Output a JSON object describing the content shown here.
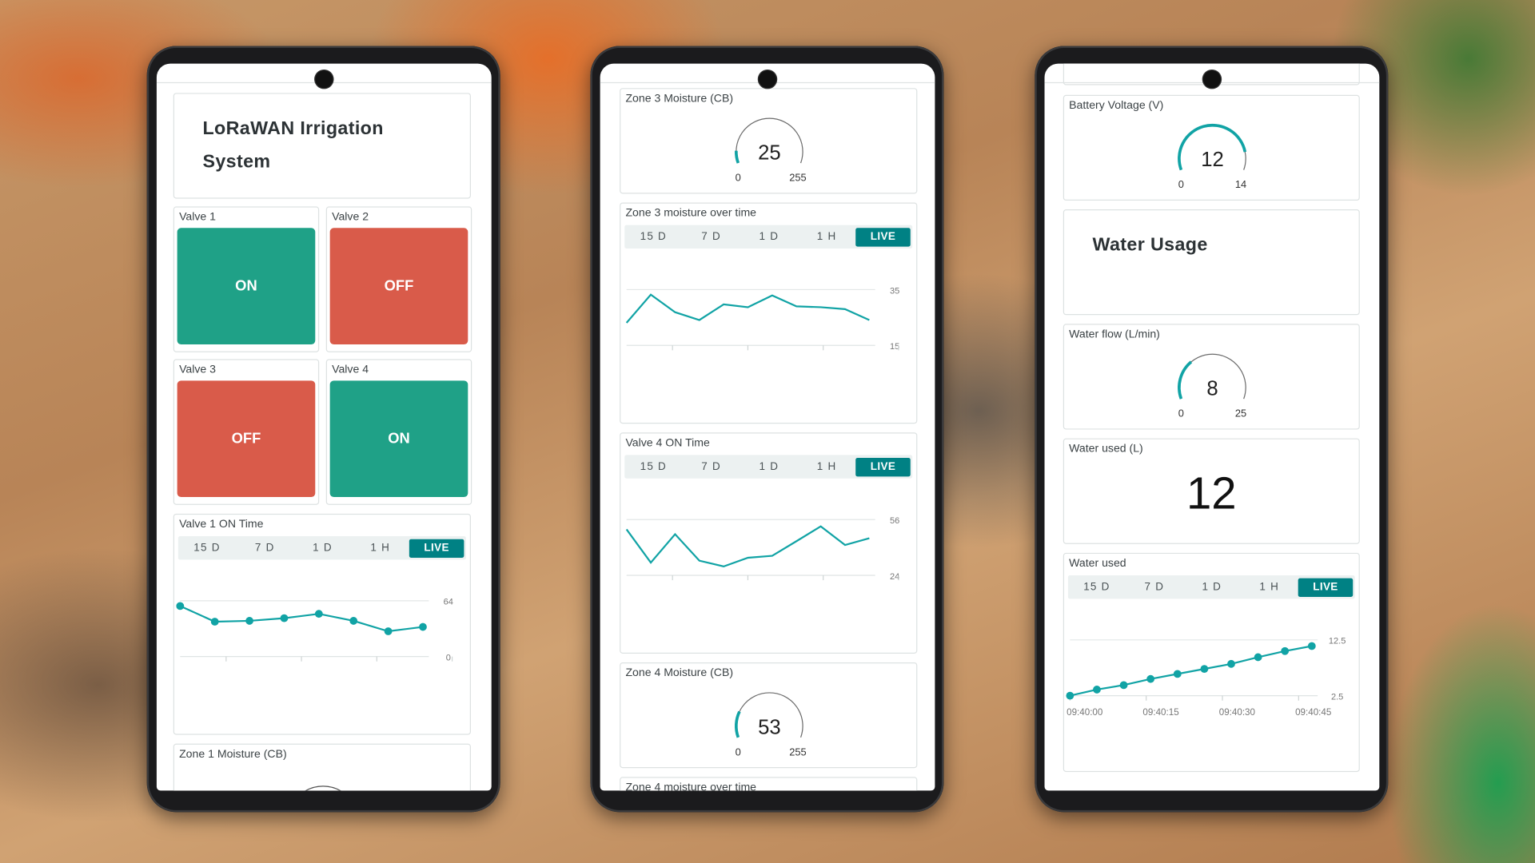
{
  "colors": {
    "on": "#1fa187",
    "off": "#d95b4a",
    "accent": "#008184",
    "line": "#11a3a5"
  },
  "tabs": [
    "15 D",
    "7 D",
    "1 D",
    "1 H",
    "LIVE"
  ],
  "left": {
    "title_line1": "LoRaWAN Irrigation",
    "title_line2": "System",
    "valves": [
      {
        "label": "Valve 1",
        "state": "ON"
      },
      {
        "label": "Valve 2",
        "state": "OFF"
      },
      {
        "label": "Valve 3",
        "state": "OFF"
      },
      {
        "label": "Valve 4",
        "state": "ON"
      }
    ],
    "chart_title": "Valve 1 ON Time",
    "zone1_title": "Zone 1 Moisture (CB)"
  },
  "middle": {
    "zone3_gauge": {
      "title": "Zone 3 Moisture (CB)",
      "value": "25",
      "min": "0",
      "max": "255"
    },
    "zone3_chart_title": "Zone 3 moisture over time",
    "valve4_chart_title": "Valve 4 ON Time",
    "zone4_gauge": {
      "title": "Zone 4 Moisture (CB)",
      "value": "53",
      "min": "0",
      "max": "255"
    },
    "zone4_chart_title": "Zone 4 moisture over time"
  },
  "right": {
    "battery_gauge": {
      "title": "Battery Voltage (V)",
      "value": "12",
      "min": "0",
      "max": "14"
    },
    "section_title": "Water Usage",
    "flow_gauge": {
      "title": "Water flow (L/min)",
      "value": "8",
      "min": "0",
      "max": "25"
    },
    "water_used_title": "Water used (L)",
    "water_used_value": "12",
    "water_chart_title": "Water used"
  },
  "chart_data": [
    {
      "type": "line",
      "title": "Valve 1 ON Time",
      "ylim": [
        0,
        64
      ],
      "ytick_labels": [
        "64",
        "0"
      ],
      "markers": true,
      "values": [
        58,
        40,
        41,
        44,
        49,
        41,
        29,
        34
      ]
    },
    {
      "type": "line",
      "title": "Zone 3 moisture over time",
      "ylim": [
        15,
        35
      ],
      "ytick_labels": [
        "35",
        "15"
      ],
      "markers": false,
      "values": [
        23.1,
        33.2,
        26.9,
        24.1,
        29.7,
        28.7,
        32.9,
        29.0,
        28.7,
        28.0,
        24.1
      ]
    },
    {
      "type": "line",
      "title": "Valve 4 ON Time",
      "ylim": [
        24,
        56
      ],
      "ytick_labels": [
        "56",
        "24"
      ],
      "markers": false,
      "values": [
        50.4,
        31.3,
        47.6,
        32.4,
        29.1,
        34.1,
        35.2,
        43.6,
        52.1,
        41.4,
        45.3
      ]
    },
    {
      "type": "line",
      "title": "Water used",
      "ylim": [
        2.5,
        12.5
      ],
      "ytick_labels": [
        "12.5",
        "2.5"
      ],
      "markers": true,
      "xtick_labels": [
        "09:40:00",
        "09:40:15",
        "09:40:30",
        "09:40:45"
      ],
      "values": [
        2.5,
        3.6,
        4.4,
        5.5,
        6.4,
        7.3,
        8.2,
        9.4,
        10.5,
        11.4
      ]
    }
  ]
}
